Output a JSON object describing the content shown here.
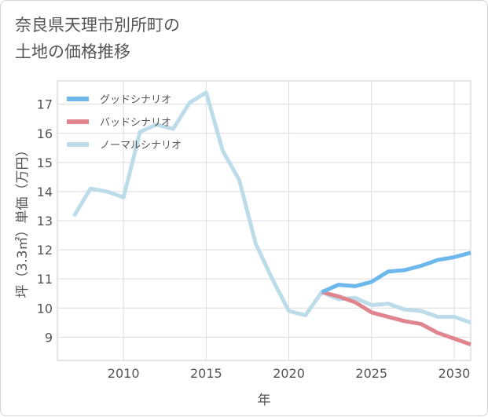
{
  "title_lines": [
    "奈良県天理市別所町の",
    "土地の価格推移"
  ],
  "chart_data": {
    "type": "line",
    "xlabel": "年",
    "ylabel": "坪（3.3㎡）単価（万円）",
    "xlim": [
      2006,
      2031
    ],
    "ylim": [
      8.2,
      17.8
    ],
    "xticks": [
      2010,
      2015,
      2020,
      2025,
      2030
    ],
    "yticks": [
      9,
      10,
      11,
      12,
      13,
      14,
      15,
      16,
      17
    ],
    "grid": true,
    "legend_position": "top-left",
    "series": [
      {
        "name": "グッドシナリオ",
        "color": "#6cb8ec",
        "x": [
          2022,
          2023,
          2024,
          2025,
          2026,
          2027,
          2028,
          2029,
          2030,
          2031
        ],
        "y": [
          10.55,
          10.8,
          10.75,
          10.9,
          11.25,
          11.3,
          11.45,
          11.65,
          11.75,
          11.9
        ]
      },
      {
        "name": "バッドシナリオ",
        "color": "#e0848d",
        "x": [
          2022,
          2023,
          2024,
          2025,
          2026,
          2027,
          2028,
          2029,
          2030,
          2031
        ],
        "y": [
          10.55,
          10.4,
          10.2,
          9.85,
          9.7,
          9.55,
          9.45,
          9.15,
          8.95,
          8.75
        ]
      },
      {
        "name": "ノーマルシナリオ",
        "color": "#bddcea",
        "x": [
          2007,
          2008,
          2009,
          2010,
          2011,
          2012,
          2013,
          2014,
          2015,
          2016,
          2017,
          2018,
          2019,
          2020,
          2021,
          2022,
          2023,
          2024,
          2025,
          2026,
          2027,
          2028,
          2029,
          2030,
          2031
        ],
        "y": [
          13.15,
          14.1,
          14.0,
          13.8,
          16.05,
          16.3,
          16.15,
          17.05,
          17.4,
          15.4,
          14.4,
          12.2,
          11.0,
          9.9,
          9.75,
          10.55,
          10.3,
          10.35,
          10.1,
          10.15,
          9.95,
          9.9,
          9.7,
          9.7,
          9.5
        ]
      }
    ]
  }
}
